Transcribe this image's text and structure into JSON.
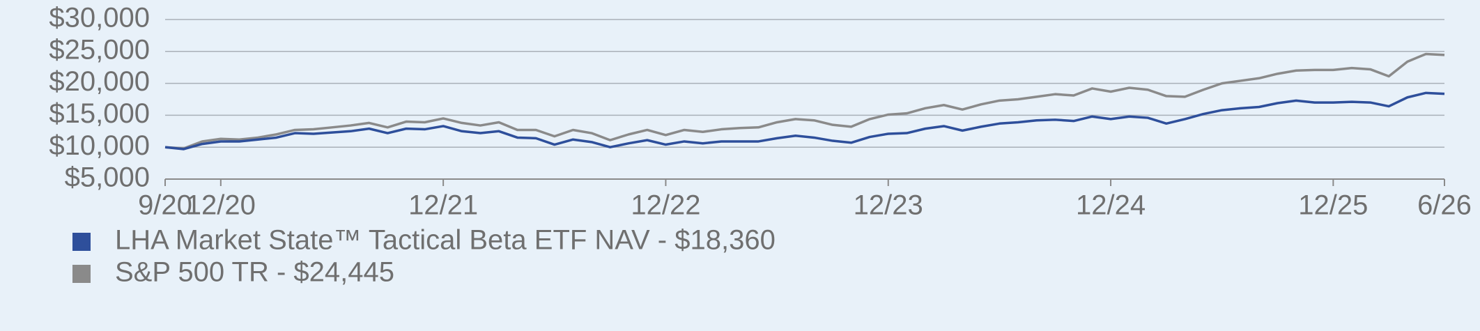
{
  "chart_data": {
    "type": "line",
    "categories": [
      "9/20",
      null,
      null,
      "12/20",
      null,
      null,
      null,
      null,
      null,
      null,
      null,
      null,
      null,
      null,
      null,
      "12/21",
      null,
      null,
      null,
      null,
      null,
      null,
      null,
      null,
      null,
      null,
      null,
      "12/22",
      null,
      null,
      null,
      null,
      null,
      null,
      null,
      null,
      null,
      null,
      null,
      "12/23",
      null,
      null,
      null,
      null,
      null,
      null,
      null,
      null,
      null,
      null,
      null,
      "12/24",
      null,
      null,
      null,
      null,
      null,
      null,
      null,
      null,
      null,
      null,
      null,
      "12/25",
      null,
      null,
      null,
      null,
      null,
      "6/26"
    ],
    "series": [
      {
        "name": "LHA Market State™ Tactical Beta ETF NAV - $18,360",
        "color": "#2e4f9b",
        "values": [
          10000,
          9700,
          10500,
          10900,
          10900,
          11200,
          11500,
          12200,
          12100,
          12300,
          12500,
          12900,
          12200,
          12900,
          12800,
          13300,
          12500,
          12200,
          12500,
          11500,
          11400,
          10400,
          11200,
          10800,
          10000,
          10600,
          11100,
          10400,
          10900,
          10600,
          10900,
          10900,
          10900,
          11400,
          11800,
          11500,
          11000,
          10700,
          11600,
          12100,
          12200,
          12900,
          13300,
          12600,
          13200,
          13700,
          13900,
          14200,
          14300,
          14100,
          14800,
          14400,
          14800,
          14600,
          13700,
          14400,
          15200,
          15800,
          16100,
          16300,
          16900,
          17300,
          17000,
          17000,
          17100,
          17000,
          16400,
          17800,
          18500,
          18360
        ]
      },
      {
        "name": "S&P 500 TR - $24,445",
        "color": "#8a8a8a",
        "values": [
          10000,
          9800,
          10900,
          11300,
          11200,
          11500,
          12000,
          12700,
          12800,
          13100,
          13400,
          13800,
          13100,
          14000,
          13900,
          14500,
          13800,
          13400,
          13900,
          12700,
          12700,
          11700,
          12700,
          12200,
          11100,
          12000,
          12700,
          11900,
          12700,
          12400,
          12800,
          13000,
          13100,
          13900,
          14400,
          14200,
          13500,
          13200,
          14400,
          15100,
          15300,
          16100,
          16600,
          15900,
          16700,
          17300,
          17500,
          17900,
          18300,
          18100,
          19200,
          18700,
          19300,
          19000,
          18000,
          17900,
          19000,
          20000,
          20400,
          20800,
          21500,
          22000,
          22100,
          22100,
          22400,
          22200,
          21100,
          23400,
          24600,
          24445
        ]
      }
    ],
    "ylim": [
      5000,
      30000
    ],
    "yticks": [
      {
        "value": 5000,
        "label": "$5,000"
      },
      {
        "value": 10000,
        "label": "$10,000"
      },
      {
        "value": 15000,
        "label": "$15,000"
      },
      {
        "value": 20000,
        "label": "$20,000"
      },
      {
        "value": 25000,
        "label": "$25,000"
      },
      {
        "value": 30000,
        "label": "$30,000"
      }
    ],
    "grid": true
  }
}
